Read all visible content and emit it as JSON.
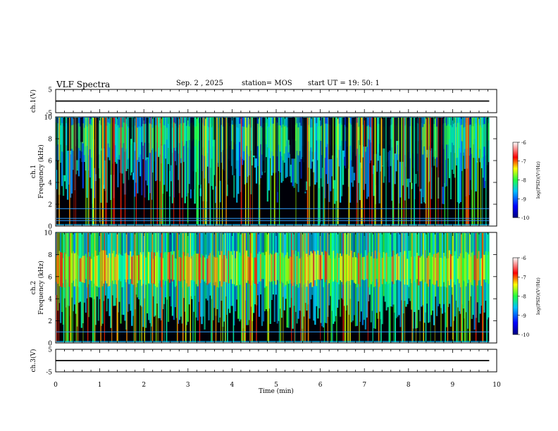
{
  "header": {
    "title": "VLF Spectra",
    "date": "Sep. 2 , 2025",
    "station": "station= MOS",
    "start_ut": "start  UT =   19: 50: 1"
  },
  "chart_data": [
    {
      "type": "line",
      "ylabel": "ch.1(V)",
      "ylim": [
        -5,
        5
      ],
      "yticks": [
        "5",
        "-5"
      ],
      "series": [
        {
          "x": [
            0,
            9.83
          ],
          "y": [
            0,
            0
          ]
        }
      ]
    },
    {
      "type": "heatmap",
      "ylabel_line1": "ch.1",
      "ylabel_line2": "Frequency (kHz)",
      "ylim": [
        0,
        10
      ],
      "yticks": [
        "0",
        "2",
        "4",
        "6",
        "8",
        "10"
      ],
      "xlim": [
        0,
        10
      ],
      "data_end_min": 9.83,
      "colorbar": {
        "label": "log(PSD)(V²/Hz)",
        "range": [
          -10,
          -6
        ],
        "ticks": [
          "-6",
          "-7",
          "-8",
          "-9",
          "-10"
        ]
      },
      "description_values": {
        "background_level": -10,
        "broadband_band_khz": [
          2,
          10
        ],
        "narrowband_lines_khz": [
          0.5,
          0.7,
          1.6
        ]
      }
    },
    {
      "type": "heatmap",
      "ylabel_line1": "ch.2",
      "ylabel_line2": "Frequency (kHz)",
      "ylim": [
        0,
        10
      ],
      "yticks": [
        "0",
        "2",
        "4",
        "6",
        "8",
        "10"
      ],
      "xlim": [
        0,
        10
      ],
      "data_end_min": 9.83,
      "colorbar": {
        "label": "log(PSD)(V²/Hz)",
        "range": [
          -10,
          -6
        ],
        "ticks": [
          "-6",
          "-7",
          "-8",
          "-9",
          "-10"
        ]
      },
      "description_values": {
        "background_level": -10,
        "peak_band_khz": [
          6,
          7.5
        ],
        "narrowband_lines_khz": [
          1.0
        ]
      }
    },
    {
      "type": "line",
      "ylabel": "ch.3(V)",
      "ylim": [
        -5,
        5
      ],
      "yticks": [
        "5",
        "-5"
      ],
      "series": [
        {
          "x": [
            0,
            9.83
          ],
          "y": [
            0,
            0
          ]
        }
      ]
    }
  ],
  "xaxis": {
    "label": "Time (min)",
    "range": [
      0,
      10
    ],
    "ticks": [
      "0",
      "1",
      "2",
      "3",
      "4",
      "5",
      "6",
      "7",
      "8",
      "9",
      "10"
    ]
  },
  "colors": {
    "background": "#000000",
    "low": "#0000a0",
    "mid": "#00c0ff",
    "green": "#40ff40",
    "yellow": "#ffff00",
    "high": "#ff0000",
    "top": "#ffffff"
  }
}
